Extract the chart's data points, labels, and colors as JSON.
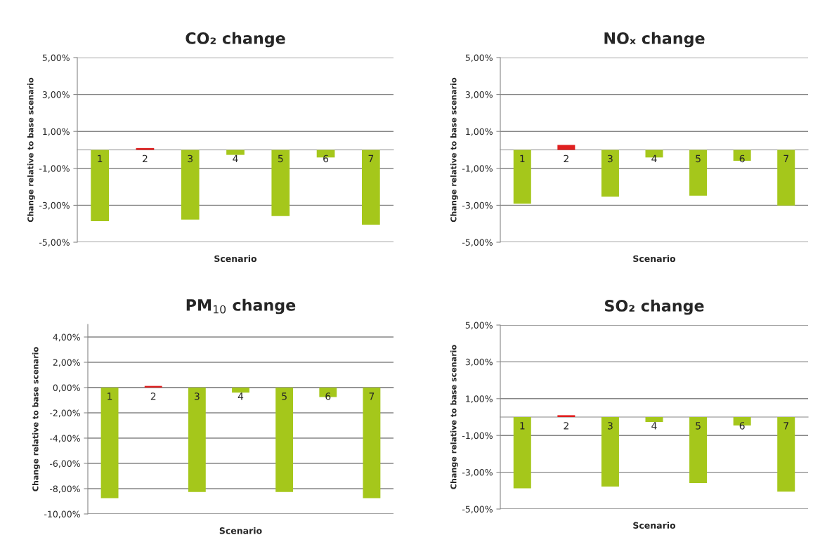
{
  "chart_data": [
    {
      "type": "bar",
      "title": "CO₂ change",
      "xlabel": "Scenario",
      "ylabel": "Change relative to base scenario",
      "categories": [
        "1",
        "2",
        "3",
        "4",
        "5",
        "6",
        "7"
      ],
      "values": [
        -3.86,
        0.1,
        -3.77,
        -0.27,
        -3.58,
        -0.41,
        -4.05
      ],
      "colors": [
        "#a5c71b",
        "#e02020",
        "#a5c71b",
        "#a5c71b",
        "#a5c71b",
        "#a5c71b",
        "#a5c71b"
      ],
      "ylim": [
        -5,
        5
      ],
      "yticks": [
        {
          "value": -5,
          "label": "-5,00%"
        },
        {
          "value": -3,
          "label": "-3,00%"
        },
        {
          "value": -1,
          "label": "-1,00%"
        },
        {
          "value": 1,
          "label": "1,00%"
        },
        {
          "value": 3,
          "label": "3,00%"
        },
        {
          "value": 5,
          "label": "5,00%"
        }
      ],
      "grid": "y"
    },
    {
      "type": "bar",
      "title": "NOₓ change",
      "xlabel": "Scenario",
      "ylabel": "Change relative to base scenario",
      "categories": [
        "1",
        "2",
        "3",
        "4",
        "5",
        "6",
        "7"
      ],
      "values": [
        -2.91,
        0.27,
        -2.53,
        -0.41,
        -2.48,
        -0.59,
        -3.01
      ],
      "colors": [
        "#a5c71b",
        "#e02020",
        "#a5c71b",
        "#a5c71b",
        "#a5c71b",
        "#a5c71b",
        "#a5c71b"
      ],
      "ylim": [
        -5,
        5
      ],
      "yticks": [
        {
          "value": -5,
          "label": "-5,00%"
        },
        {
          "value": -3,
          "label": "-3,00%"
        },
        {
          "value": -1,
          "label": "-1,00%"
        },
        {
          "value": 1,
          "label": "1,00%"
        },
        {
          "value": 3,
          "label": "3,00%"
        },
        {
          "value": 5,
          "label": "5,00%"
        }
      ],
      "grid": "y"
    },
    {
      "type": "bar",
      "title": "PM$_{10}$ change",
      "xlabel": "Scenario",
      "ylabel": "Change relative to base scenario",
      "categories": [
        "1",
        "2",
        "3",
        "4",
        "5",
        "6",
        "7"
      ],
      "values": [
        -8.75,
        0.13,
        -8.26,
        -0.4,
        -8.26,
        -0.75,
        -8.75
      ],
      "colors": [
        "#a5c71b",
        "#e02020",
        "#a5c71b",
        "#a5c71b",
        "#a5c71b",
        "#a5c71b",
        "#a5c71b"
      ],
      "ylim": [
        -10,
        5
      ],
      "yticks": [
        {
          "value": -10,
          "label": "-10,00%"
        },
        {
          "value": -8,
          "label": "-8,00%"
        },
        {
          "value": -6,
          "label": "-6,00%"
        },
        {
          "value": -4,
          "label": "-4,00%"
        },
        {
          "value": -2,
          "label": "-2,00%"
        },
        {
          "value": 0,
          "label": "0,00%"
        },
        {
          "value": 2,
          "label": "2,00%"
        },
        {
          "value": 4,
          "label": "4,00%"
        }
      ],
      "grid": "y"
    },
    {
      "type": "bar",
      "title": "SO₂ change",
      "xlabel": "Scenario",
      "ylabel": "Change relative to base scenario",
      "categories": [
        "1",
        "2",
        "3",
        "4",
        "5",
        "6",
        "7"
      ],
      "values": [
        -3.87,
        0.1,
        -3.78,
        -0.27,
        -3.59,
        -0.46,
        -4.06
      ],
      "colors": [
        "#a5c71b",
        "#e02020",
        "#a5c71b",
        "#a5c71b",
        "#a5c71b",
        "#a5c71b",
        "#a5c71b"
      ],
      "ylim": [
        -5,
        5
      ],
      "yticks": [
        {
          "value": -5,
          "label": "-5,00%"
        },
        {
          "value": -3,
          "label": "-3,00%"
        },
        {
          "value": -1,
          "label": "-1,00%"
        },
        {
          "value": 1,
          "label": "1,00%"
        },
        {
          "value": 3,
          "label": "3,00%"
        },
        {
          "value": 5,
          "label": "5,00%"
        }
      ],
      "grid": "y"
    }
  ]
}
